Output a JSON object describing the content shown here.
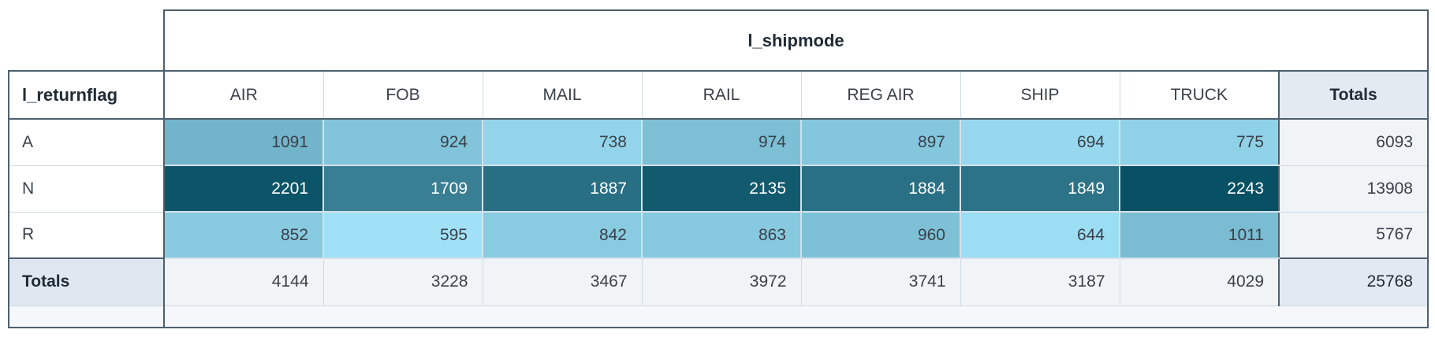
{
  "chart_data": {
    "type": "table",
    "subtype": "pivot-heatmap",
    "col_dimension": "l_shipmode",
    "row_dimension": "l_returnflag",
    "totals_label": "Totals",
    "columns": [
      "AIR",
      "FOB",
      "MAIL",
      "RAIL",
      "REG AIR",
      "SHIP",
      "TRUCK"
    ],
    "rows": [
      {
        "label": "A",
        "values": [
          1091,
          924,
          738,
          974,
          897,
          694,
          775
        ],
        "total": 6093
      },
      {
        "label": "N",
        "values": [
          2201,
          1709,
          1887,
          2135,
          1884,
          1849,
          2243
        ],
        "total": 13908
      },
      {
        "label": "R",
        "values": [
          852,
          595,
          842,
          863,
          960,
          644,
          1011
        ],
        "total": 5767
      }
    ],
    "column_totals": [
      4144,
      3228,
      3467,
      3972,
      3741,
      3187,
      4029
    ],
    "grand_total": 25768,
    "heatmap": {
      "min_value": 595,
      "max_value": 2243,
      "min_color": "#a0e1f7",
      "max_color": "#085064",
      "light_text": "#39414a",
      "dark_cell_text": "#ffffff",
      "text_switch_value": 1500
    }
  },
  "colors": {
    "frame_border": "#4d5f6e",
    "light_border": "#cfdae3",
    "heat_separator": "#d3e2eb",
    "totals_col_header_bg": "#e4eaf2",
    "totals_row_label_bg": "#dfe8f1",
    "totals_value_bg": "#f1f4f7",
    "grand_total_bg": "#e3e9f2",
    "strip_bg": "#f5f7fa",
    "header_text": "#202b36",
    "cell_text": "#3a414a"
  }
}
